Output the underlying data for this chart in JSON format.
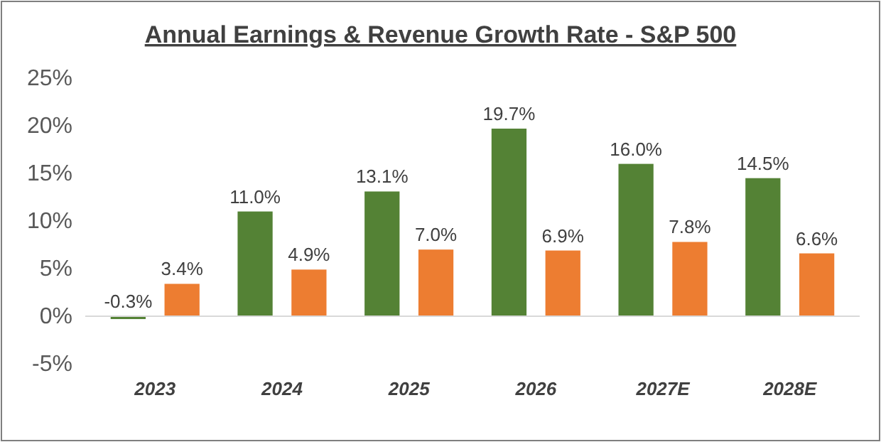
{
  "chart_data": {
    "type": "bar",
    "title": "Annual Earnings & Revenue Growth Rate - S&P 500",
    "categories": [
      "2023",
      "2024",
      "2025",
      "2026",
      "2027E",
      "2028E"
    ],
    "series": [
      {
        "color": "#548235",
        "values": [
          -0.3,
          11.0,
          13.1,
          19.7,
          16.0,
          14.5
        ],
        "value_labels": [
          "-0.3%",
          "11.0%",
          "13.1%",
          "19.7%",
          "16.0%",
          "14.5%"
        ]
      },
      {
        "color": "#ed7d31",
        "values": [
          3.4,
          4.9,
          7.0,
          6.9,
          7.8,
          6.6
        ],
        "value_labels": [
          "3.4%",
          "4.9%",
          "7.0%",
          "6.9%",
          "7.8%",
          "6.6%"
        ]
      }
    ],
    "ylim": [
      -5,
      25
    ],
    "yticks": [
      {
        "value": -5,
        "label": "-5%"
      },
      {
        "value": 0,
        "label": "0%"
      },
      {
        "value": 5,
        "label": "5%"
      },
      {
        "value": 10,
        "label": "10%"
      },
      {
        "value": 15,
        "label": "15%"
      },
      {
        "value": 20,
        "label": "20%"
      },
      {
        "value": 25,
        "label": "25%"
      }
    ],
    "data_labels": false
  }
}
